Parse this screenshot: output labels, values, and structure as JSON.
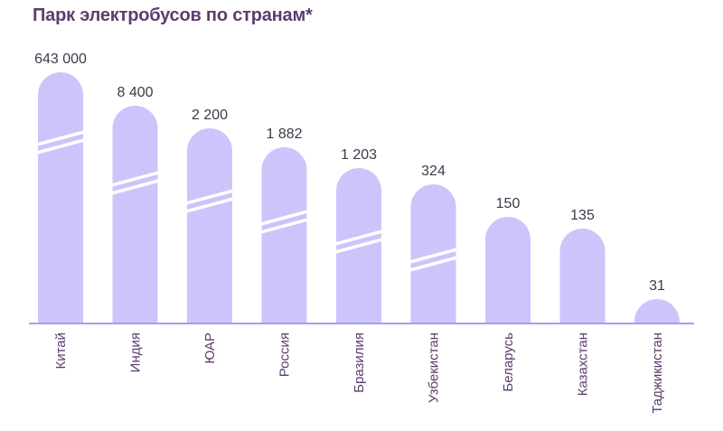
{
  "title": "Парк электробусов по странам*",
  "colors": {
    "bar": "#cbc5fb",
    "axis": "#a79cf5",
    "title": "#5b3d6f",
    "value_text": "#3b3b4a",
    "break_marks": "#ffffff"
  },
  "chart_data": {
    "type": "bar",
    "title": "Парк электробусов по странам*",
    "xlabel": "",
    "ylabel": "",
    "scale": "broken (non-linear, bars shown with break marks)",
    "grid": false,
    "legend": "none",
    "categories": [
      "Китай",
      "Индия",
      "ЮАР",
      "Россия",
      "Бразилия",
      "Узбекистан",
      "Беларусь",
      "Казахстан",
      "Таджикистан"
    ],
    "values": [
      643000,
      8400,
      2200,
      1882,
      1203,
      324,
      150,
      135,
      31
    ],
    "value_labels": [
      "643 000",
      "8 400",
      "2 200",
      "1 882",
      "1 203",
      "324",
      "150",
      "135",
      "31"
    ],
    "broken_bars": [
      true,
      true,
      true,
      true,
      true,
      true,
      false,
      false,
      false
    ]
  }
}
